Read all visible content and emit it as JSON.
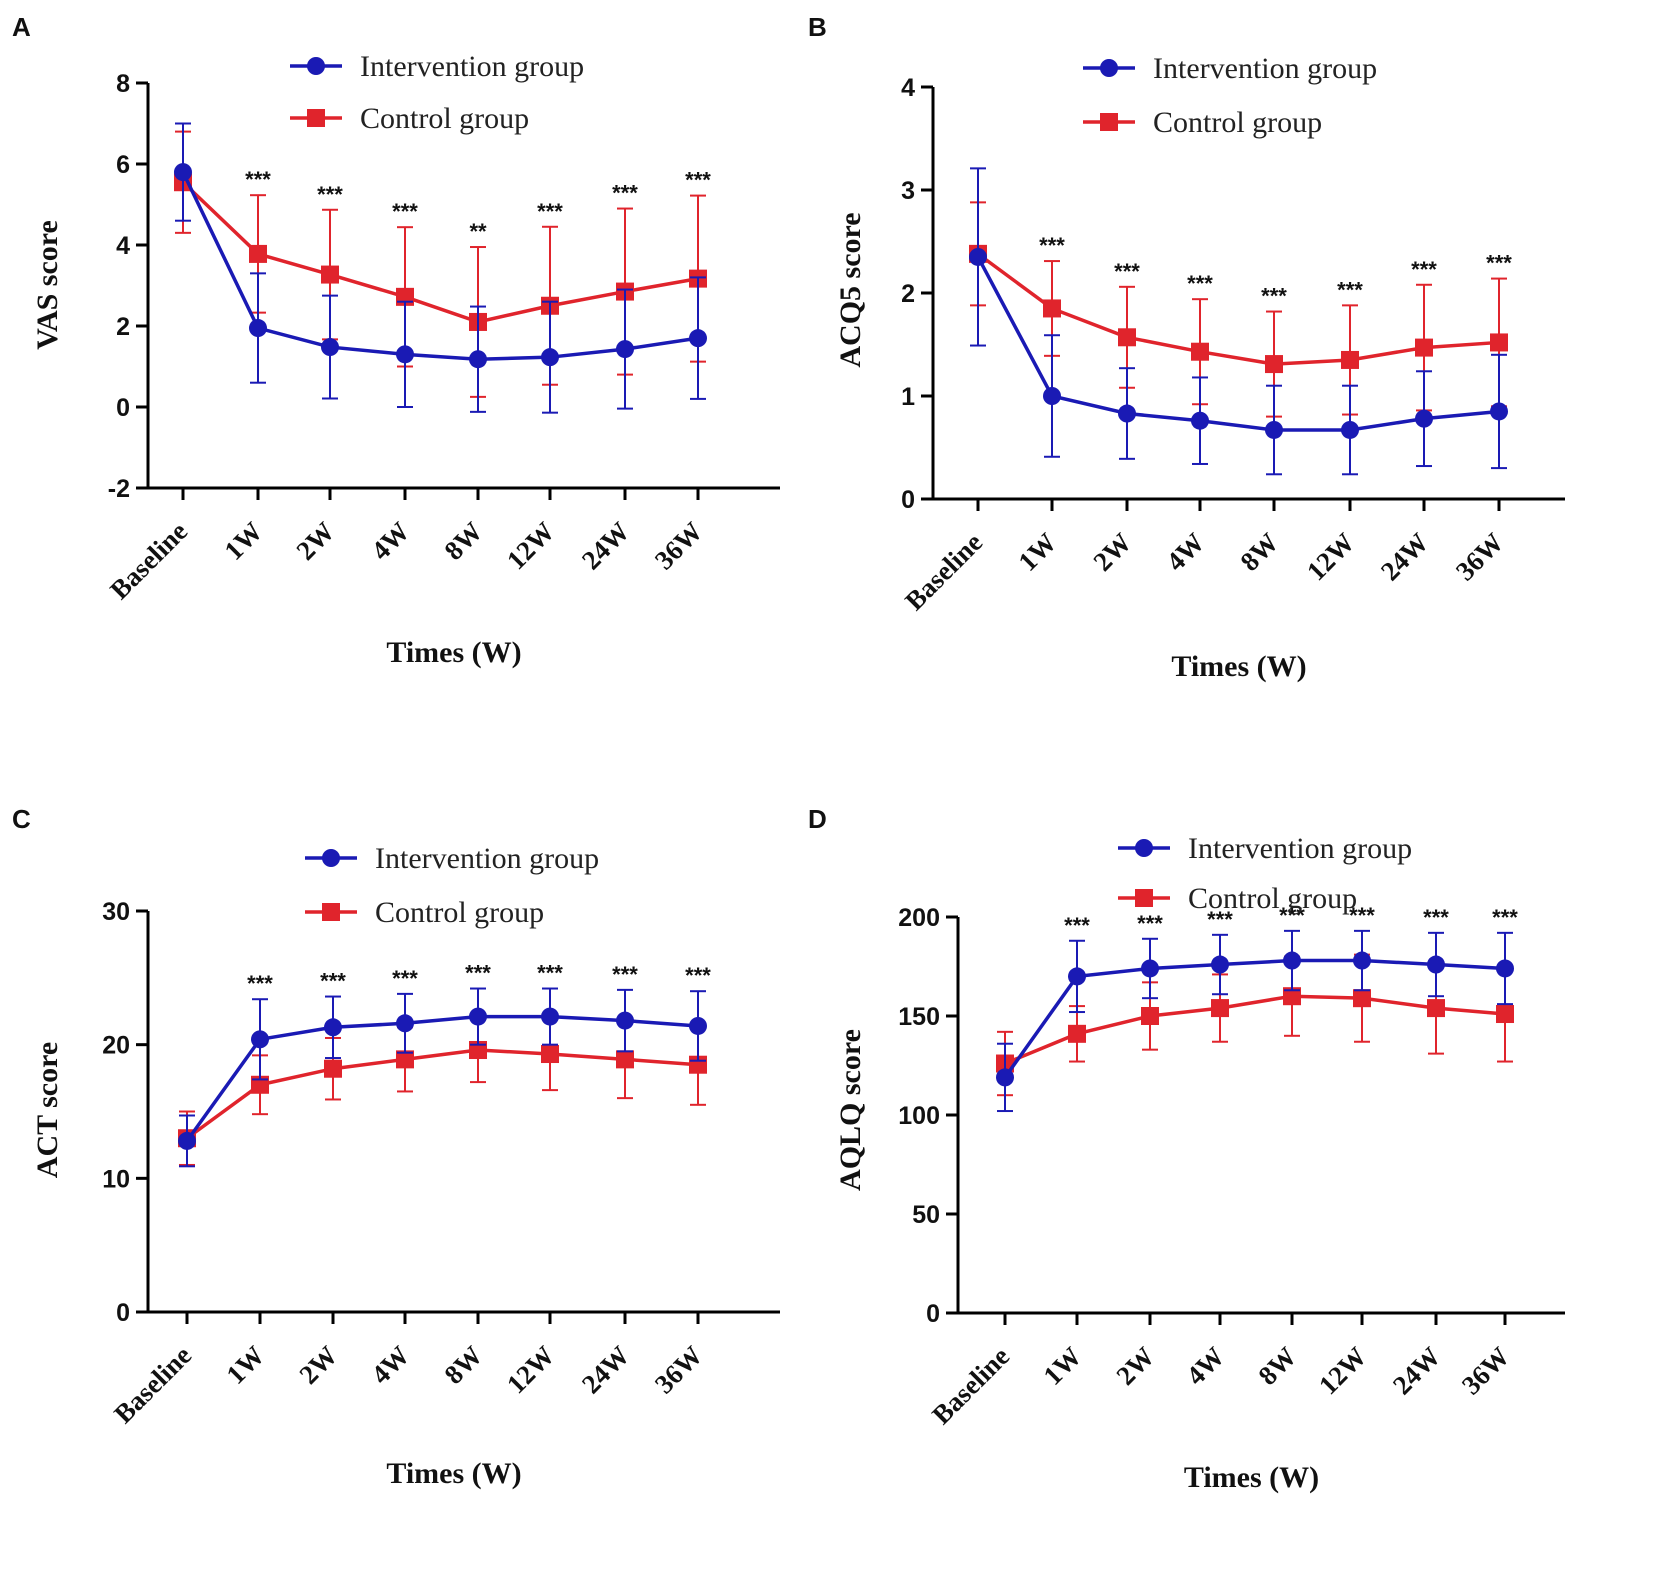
{
  "figure": {
    "colors": {
      "intervention": "#1a1ab4",
      "control": "#e0242c",
      "axis": "#000000"
    },
    "legend_labels": {
      "intervention": "Intervention group",
      "control": "Control group"
    }
  },
  "chart_data": [
    {
      "panel": "A",
      "type": "line",
      "title": "",
      "xlabel": "Times (W)",
      "ylabel": "VAS score",
      "ylim": [
        -2,
        8
      ],
      "yticks": [
        -2,
        0,
        2,
        4,
        6,
        8
      ],
      "categories": [
        "Baseline",
        "1W",
        "2W",
        "4W",
        "8W",
        "12W",
        "24W",
        "36W"
      ],
      "series": [
        {
          "name": "Intervention group",
          "marker": "circle",
          "values": [
            5.8,
            1.95,
            1.48,
            1.3,
            1.18,
            1.23,
            1.43,
            1.7
          ],
          "err": [
            1.2,
            1.35,
            1.27,
            1.3,
            1.3,
            1.37,
            1.47,
            1.5
          ]
        },
        {
          "name": "Control group",
          "marker": "square",
          "values": [
            5.55,
            3.78,
            3.27,
            2.72,
            2.1,
            2.5,
            2.85,
            3.17
          ],
          "err": [
            1.25,
            1.45,
            1.6,
            1.72,
            1.85,
            1.95,
            2.05,
            2.05
          ]
        }
      ],
      "significance": [
        "",
        "***",
        "***",
        "***",
        "**",
        "***",
        "***",
        "***"
      ]
    },
    {
      "panel": "B",
      "type": "line",
      "title": "",
      "xlabel": "Times (W)",
      "ylabel": "ACQ5 score",
      "ylim": [
        0,
        4
      ],
      "yticks": [
        0,
        1,
        2,
        3,
        4
      ],
      "categories": [
        "Baseline",
        "1W",
        "2W",
        "4W",
        "8W",
        "12W",
        "24W",
        "36W"
      ],
      "series": [
        {
          "name": "Intervention group",
          "marker": "circle",
          "values": [
            2.35,
            1.0,
            0.83,
            0.76,
            0.67,
            0.67,
            0.78,
            0.85
          ],
          "err": [
            0.86,
            0.59,
            0.44,
            0.42,
            0.43,
            0.43,
            0.46,
            0.55
          ]
        },
        {
          "name": "Control group",
          "marker": "square",
          "values": [
            2.38,
            1.85,
            1.57,
            1.43,
            1.31,
            1.35,
            1.47,
            1.52
          ],
          "err": [
            0.5,
            0.46,
            0.49,
            0.51,
            0.51,
            0.53,
            0.61,
            0.62
          ]
        }
      ],
      "significance": [
        "",
        "***",
        "***",
        "***",
        "***",
        "***",
        "***",
        "***"
      ]
    },
    {
      "panel": "C",
      "type": "line",
      "title": "",
      "xlabel": "Times (W)",
      "ylabel": "ACT score",
      "ylim": [
        0,
        30
      ],
      "yticks": [
        0,
        10,
        20,
        30
      ],
      "categories": [
        "Baseline",
        "1W",
        "2W",
        "4W",
        "8W",
        "12W",
        "24W",
        "36W"
      ],
      "series": [
        {
          "name": "Intervention group",
          "marker": "circle",
          "values": [
            12.8,
            20.4,
            21.3,
            21.6,
            22.1,
            22.1,
            21.8,
            21.4
          ],
          "err": [
            1.9,
            3.0,
            2.3,
            2.2,
            2.1,
            2.1,
            2.3,
            2.6
          ]
        },
        {
          "name": "Control group",
          "marker": "square",
          "values": [
            13.0,
            17.0,
            18.2,
            18.9,
            19.6,
            19.3,
            18.9,
            18.5
          ],
          "err": [
            2.0,
            2.2,
            2.3,
            2.4,
            2.4,
            2.7,
            2.9,
            3.0
          ]
        }
      ],
      "significance": [
        "",
        "***",
        "***",
        "***",
        "***",
        "***",
        "***",
        "***"
      ]
    },
    {
      "panel": "D",
      "type": "line",
      "title": "",
      "xlabel": "Times (W)",
      "ylabel": "AQLQ score",
      "ylim": [
        0,
        200
      ],
      "yticks": [
        0,
        50,
        100,
        150,
        200
      ],
      "categories": [
        "Baseline",
        "1W",
        "2W",
        "4W",
        "8W",
        "12W",
        "24W",
        "36W"
      ],
      "series": [
        {
          "name": "Intervention group",
          "marker": "circle",
          "values": [
            119,
            170,
            174,
            176,
            178,
            178,
            176,
            174
          ],
          "err": [
            17,
            18,
            15,
            15,
            15,
            15,
            16,
            18
          ]
        },
        {
          "name": "Control group",
          "marker": "square",
          "values": [
            126,
            141,
            150,
            154,
            160,
            159,
            154,
            151
          ],
          "err": [
            16,
            14,
            17,
            17,
            20,
            22,
            23,
            24
          ]
        }
      ],
      "significance": [
        "",
        "***",
        "***",
        "***",
        "***",
        "***",
        "***",
        "***"
      ]
    }
  ]
}
